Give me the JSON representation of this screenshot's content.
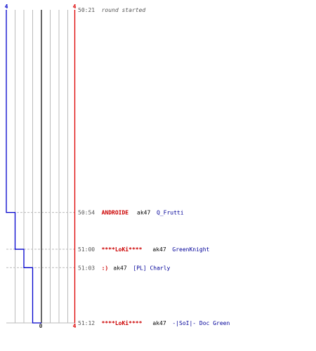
{
  "chart_data": {
    "type": "line",
    "axis": {
      "left_top_label": "4",
      "right_top_label": "4",
      "right_bottom_label": "4",
      "bottom_center_label": "0",
      "y_range": [
        0,
        4
      ]
    },
    "colors": {
      "blue_line": "#0000cc",
      "red_line": "#dd0000",
      "center_line": "#666666",
      "grid": "#bbbbbb",
      "dash": "#bbbbbb",
      "red_team": "#cc0000",
      "blue_team": "#000099"
    },
    "series": [
      {
        "team": "blue",
        "x": [
          "50:21",
          "50:54",
          "51:00",
          "51:03",
          "51:12"
        ],
        "values": [
          4,
          3,
          2,
          1,
          0
        ]
      },
      {
        "team": "red",
        "x": [
          "50:21",
          "50:54",
          "51:00",
          "51:03",
          "51:12"
        ],
        "values": [
          4,
          4,
          4,
          4,
          4
        ]
      }
    ],
    "events": [
      {
        "time": "50:21",
        "note": "round started"
      },
      {
        "time": "50:54",
        "killer": "ANDROIDE",
        "killer_team": "red",
        "weapon": "ak47",
        "victim": "Q_Frutti",
        "victim_team": "blue"
      },
      {
        "time": "51:00",
        "killer": "****LoKi****",
        "killer_team": "red",
        "weapon": "ak47",
        "victim": "GreenKnight",
        "victim_team": "blue"
      },
      {
        "time": "51:03",
        "killer": ":)",
        "killer_team": "red",
        "weapon": "ak47",
        "victim": "[PL] Charly",
        "victim_team": "blue"
      },
      {
        "time": "51:12",
        "killer": "****LoKi****",
        "killer_team": "red",
        "weapon": "ak47",
        "victim": "-|SoI|- Doc Green",
        "victim_team": "blue"
      }
    ]
  }
}
